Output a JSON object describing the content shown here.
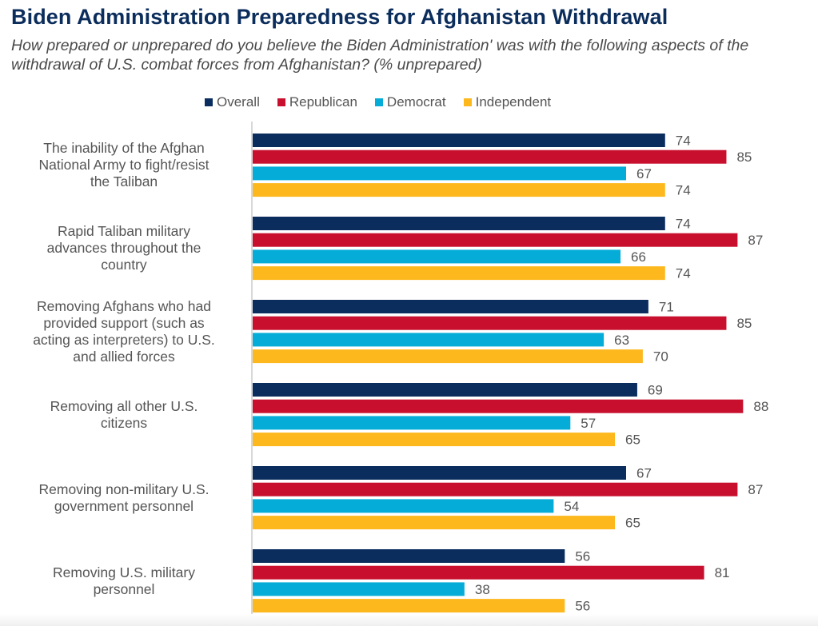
{
  "chart_data": {
    "type": "bar",
    "orientation": "horizontal",
    "title": "Biden Administration Preparedness for Afghanistan Withdrawal",
    "subtitle": "How prepared or unprepared do you believe the Biden Administration' was with the following aspects of the withdrawal of U.S. combat forces from Afghanistan? (% unprepared)",
    "xlabel": "",
    "ylabel": "",
    "xlim": [
      0,
      100
    ],
    "grid": false,
    "legend_position": "top",
    "categories": [
      "The inability of the Afghan National Army to fight/resist the Taliban",
      "Rapid Taliban military advances throughout the country",
      "Removing Afghans who had provided support (such as acting as interpreters) to U.S. and allied forces",
      "Removing all other U.S. citizens",
      "Removing non-military U.S. government personnel",
      "Removing U.S. military personnel"
    ],
    "category_label_lines": [
      [
        "The inability of the Afghan",
        "National Army to fight/resist",
        "the Taliban"
      ],
      [
        "Rapid Taliban military",
        "advances throughout the",
        "country"
      ],
      [
        "Removing Afghans who had",
        "provided support (such as",
        "acting as interpreters) to U.S.",
        "and allied forces"
      ],
      [
        "Removing all other U.S.",
        "citizens"
      ],
      [
        "Removing non-military U.S.",
        "government personnel"
      ],
      [
        "Removing U.S. military",
        "personnel"
      ]
    ],
    "series": [
      {
        "name": "Overall",
        "color": "#0a2d5e",
        "values": [
          74,
          74,
          71,
          69,
          67,
          56
        ]
      },
      {
        "name": "Republican",
        "color": "#c8102e",
        "values": [
          85,
          87,
          85,
          88,
          87,
          81
        ]
      },
      {
        "name": "Democrat",
        "color": "#05acd8",
        "values": [
          67,
          66,
          63,
          57,
          54,
          38
        ]
      },
      {
        "name": "Independent",
        "color": "#fdb81e",
        "values": [
          74,
          74,
          70,
          65,
          65,
          56
        ]
      }
    ]
  },
  "colors": {
    "title": "#0b2d5c",
    "text": "#555555",
    "axis": "#cccccc"
  }
}
